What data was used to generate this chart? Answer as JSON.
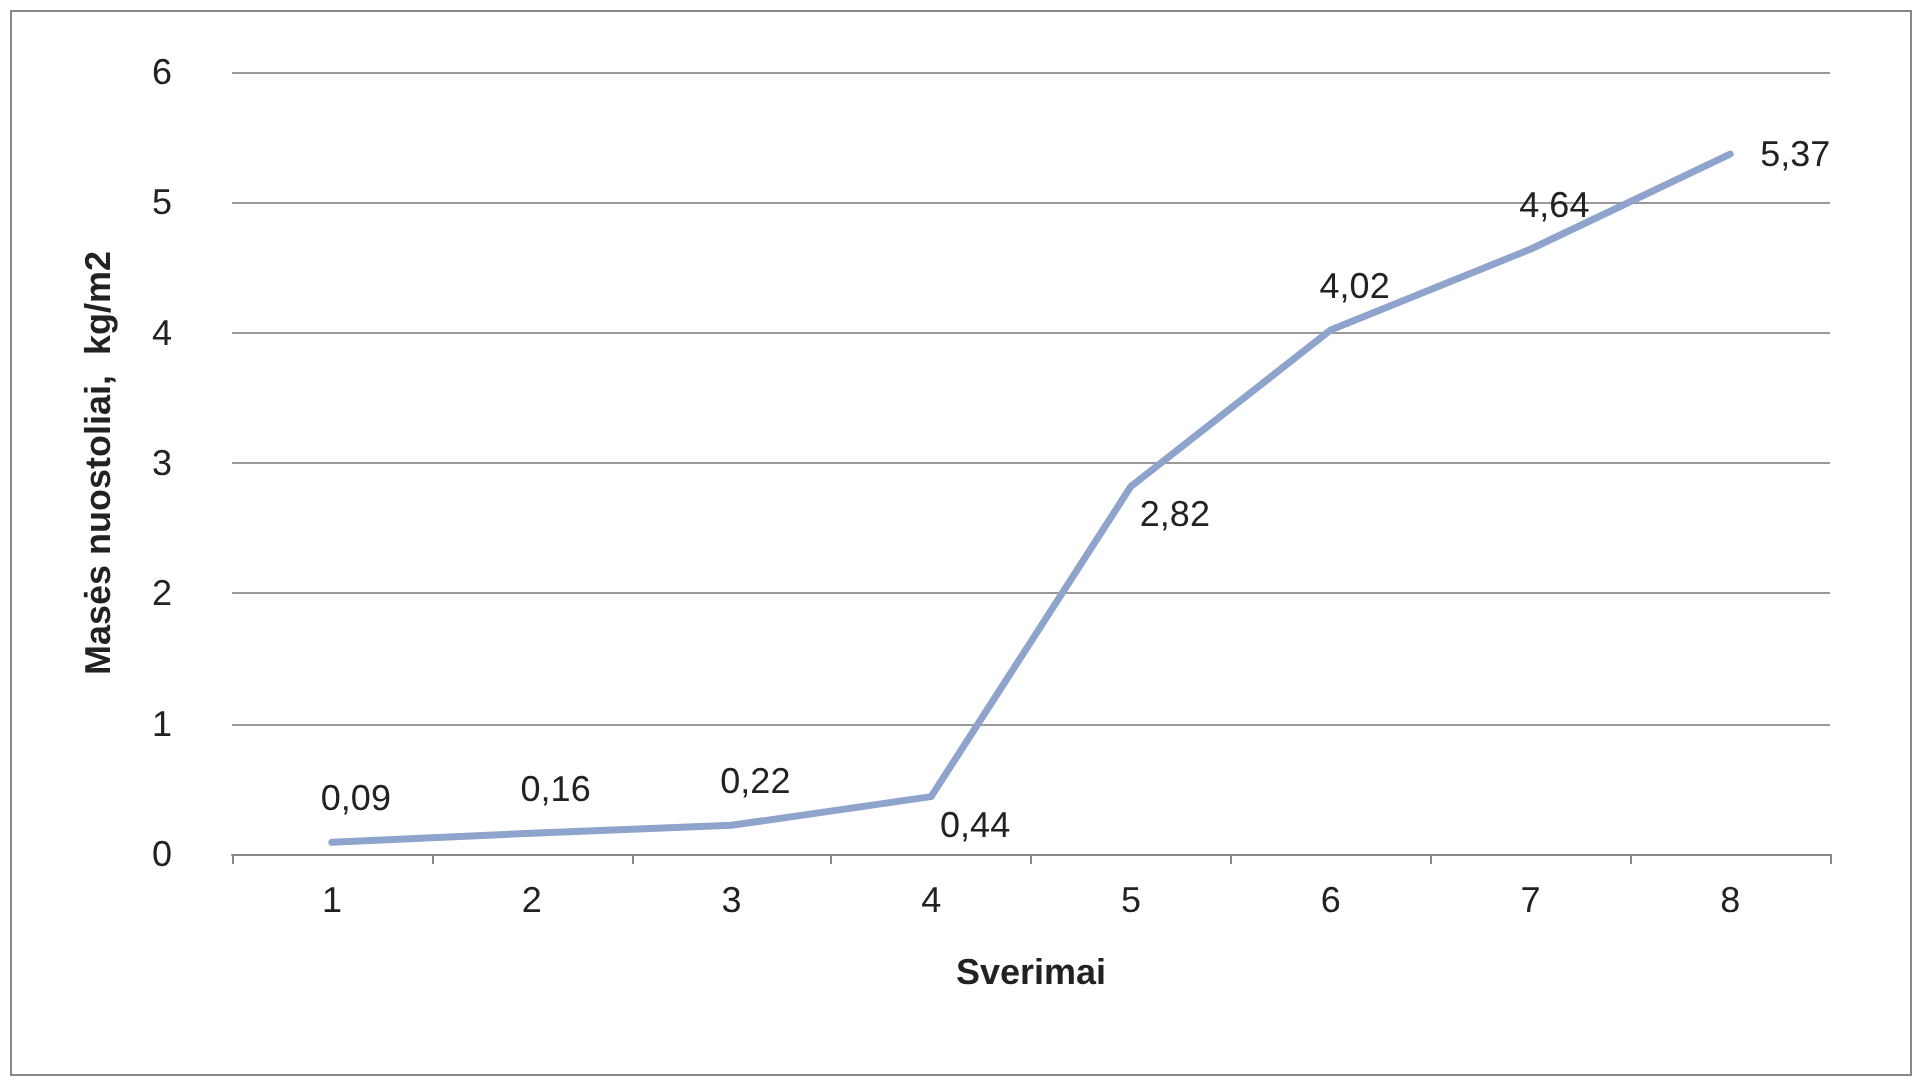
{
  "chart_data": {
    "type": "line",
    "xlabel": "Sverimai",
    "ylabel": "Masės nuostoliai,  kg/m2",
    "categories": [
      "1",
      "2",
      "3",
      "4",
      "5",
      "6",
      "7",
      "8"
    ],
    "series": [
      {
        "color": "#8ea4cc",
        "values": [
          0.09,
          0.16,
          0.22,
          0.44,
          2.82,
          4.02,
          4.64,
          5.37
        ],
        "value_labels": [
          "0,09",
          "0,16",
          "0,22",
          "0,44",
          "2,82",
          "4,02",
          "4,64",
          "5,37"
        ]
      }
    ],
    "ylim": [
      0,
      6
    ],
    "yticks": [
      0,
      1,
      2,
      3,
      4,
      5,
      6
    ],
    "grid": "y",
    "marker": "none",
    "line_style": "solid"
  }
}
